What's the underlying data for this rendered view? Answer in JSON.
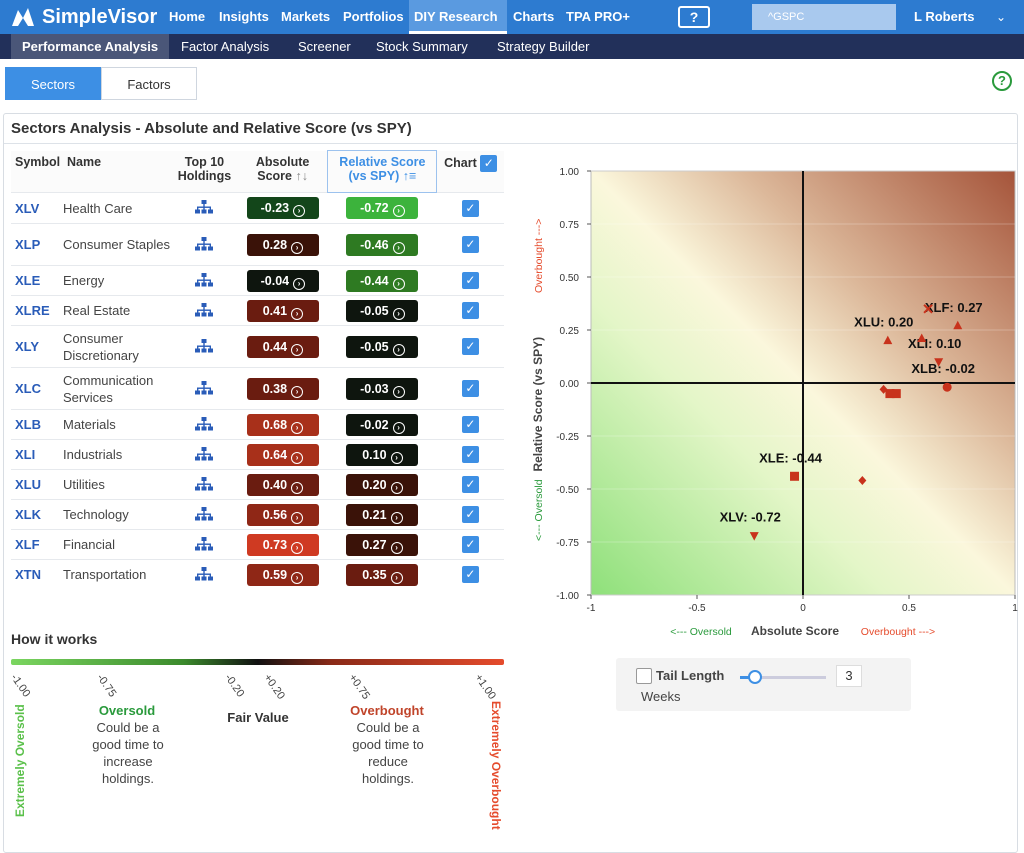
{
  "app": {
    "name": "SimpleVisor"
  },
  "nav": {
    "items": [
      "Home",
      "Insights",
      "Markets",
      "Portfolios",
      "DIY Research",
      "Charts",
      "TPA PRO+"
    ],
    "help_icon": "?",
    "search_value": "^GSPC",
    "user": "L Roberts"
  },
  "subnav": {
    "items": [
      "Performance Analysis",
      "Factor Analysis",
      "Screener",
      "Stock Summary",
      "Strategy Builder"
    ]
  },
  "tabs": {
    "sectors": "Sectors",
    "factors": "Factors"
  },
  "panel": {
    "title": "Sectors Analysis - Absolute and Relative Score (vs SPY)"
  },
  "table": {
    "headers": {
      "symbol": "Symbol",
      "name": "Name",
      "top10_a": "Top 10",
      "top10_b": "Holdings",
      "abs_a": "Absolute",
      "abs_b": "Score",
      "abs_sort": "↑↓",
      "rel_a": "Relative Score",
      "rel_b": "(vs SPY)",
      "rel_sort": "↑≡",
      "chart": "Chart",
      "checkmark": "✓"
    },
    "rows": [
      {
        "symbol": "XLV",
        "name": "Health Care",
        "abs": "-0.23",
        "rel": "-0.72"
      },
      {
        "symbol": "XLP",
        "name": "Consumer Staples",
        "abs": "0.28",
        "rel": "-0.46"
      },
      {
        "symbol": "XLE",
        "name": "Energy",
        "abs": "-0.04",
        "rel": "-0.44"
      },
      {
        "symbol": "XLRE",
        "name": "Real Estate",
        "abs": "0.41",
        "rel": "-0.05"
      },
      {
        "symbol": "XLY",
        "name": "Consumer Discretionary",
        "abs": "0.44",
        "rel": "-0.05"
      },
      {
        "symbol": "XLC",
        "name": "Communication Services",
        "abs": "0.38",
        "rel": "-0.03"
      },
      {
        "symbol": "XLB",
        "name": "Materials",
        "abs": "0.68",
        "rel": "-0.02"
      },
      {
        "symbol": "XLI",
        "name": "Industrials",
        "abs": "0.64",
        "rel": "0.10"
      },
      {
        "symbol": "XLU",
        "name": "Utilities",
        "abs": "0.40",
        "rel": "0.20"
      },
      {
        "symbol": "XLK",
        "name": "Technology",
        "abs": "0.56",
        "rel": "0.21"
      },
      {
        "symbol": "XLF",
        "name": "Financial",
        "abs": "0.73",
        "rel": "0.27"
      },
      {
        "symbol": "XTN",
        "name": "Transportation",
        "abs": "0.59",
        "rel": "0.35"
      }
    ]
  },
  "how": {
    "title": "How it works",
    "ticks": [
      "-1.00",
      "-0.75",
      "-0.20",
      "+0.20",
      "+0.75",
      "+1.00"
    ],
    "oversold_title": "Oversold",
    "oversold_text": "Could be a good time to increase holdings.",
    "fair": "Fair Value",
    "overbought_title": "Overbought",
    "overbought_text": "Could be a good time to reduce holdings.",
    "extreme_oversold": "Extremely Oversold",
    "extreme_overbought": "Extremely Overbought"
  },
  "chart_data": {
    "type": "scatter",
    "xlabel": "Absolute Score",
    "ylabel": "Relative Score (vs SPY)",
    "xlim": [
      -1,
      1
    ],
    "ylim": [
      -1,
      1
    ],
    "xticks": [
      "-1",
      "-0.5",
      "0",
      "0.5",
      "1"
    ],
    "yticks": [
      "1.00",
      "0.75",
      "0.50",
      "0.25",
      "0.00",
      "-0.25",
      "-0.50",
      "-0.75",
      "-1.00"
    ],
    "x_left_note": "<--- Oversold",
    "x_right_note": "Overbought --->",
    "y_top_note": "Overbought --->",
    "y_bottom_note": "<--- Oversold",
    "points": [
      {
        "label": "XLV: -0.72",
        "x": -0.23,
        "y": -0.72,
        "marker": "triangle-down"
      },
      {
        "label": "",
        "x": 0.28,
        "y": -0.46,
        "marker": "diamond"
      },
      {
        "label": "XLE: -0.44",
        "x": -0.04,
        "y": -0.44,
        "marker": "square"
      },
      {
        "label": "",
        "x": 0.41,
        "y": -0.05,
        "marker": "square"
      },
      {
        "label": "",
        "x": 0.44,
        "y": -0.05,
        "marker": "square"
      },
      {
        "label": "",
        "x": 0.38,
        "y": -0.03,
        "marker": "diamond"
      },
      {
        "label": "XLB: -0.02",
        "x": 0.68,
        "y": -0.02,
        "marker": "circle"
      },
      {
        "label": "XLI: 0.10",
        "x": 0.64,
        "y": 0.1,
        "marker": "triangle-down"
      },
      {
        "label": "XLU: 0.20",
        "x": 0.4,
        "y": 0.2,
        "marker": "triangle-up"
      },
      {
        "label": "",
        "x": 0.56,
        "y": 0.21,
        "marker": "triangle-up"
      },
      {
        "label": "XLF: 0.27",
        "x": 0.73,
        "y": 0.27,
        "marker": "triangle-up"
      },
      {
        "label": "",
        "x": 0.59,
        "y": 0.35,
        "marker": "x"
      }
    ]
  },
  "tail": {
    "label": "Tail Length",
    "weeks": "Weeks",
    "value": "3",
    "slider_fraction": 0.15
  }
}
